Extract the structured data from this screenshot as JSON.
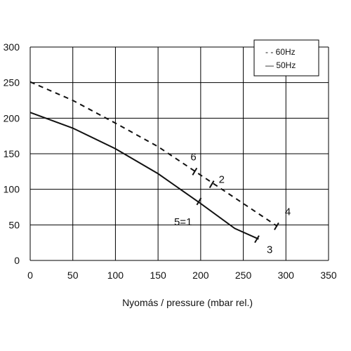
{
  "chart_data": {
    "type": "line",
    "title": "",
    "xlabel": "Nyomás  / pressure (mbar rel.)",
    "ylabel": "",
    "xlim": [
      0,
      350
    ],
    "ylim": [
      0,
      300
    ],
    "x_ticks": [
      0,
      50,
      100,
      150,
      200,
      250,
      300,
      350
    ],
    "y_ticks": [
      0,
      50,
      100,
      150,
      200,
      250,
      300
    ],
    "grid": true,
    "legend_position": "top-right",
    "series": [
      {
        "name": "60Hz",
        "legend_label": "- - 60Hz",
        "style": "dashed",
        "x": [
          0,
          50,
          100,
          150,
          200,
          250,
          290
        ],
        "y": [
          251,
          225,
          193,
          160,
          120,
          80,
          48
        ]
      },
      {
        "name": "50Hz",
        "legend_label": "—  50Hz",
        "style": "solid",
        "x": [
          0,
          50,
          100,
          150,
          200,
          240,
          268
        ],
        "y": [
          208,
          186,
          157,
          122,
          80,
          45,
          30
        ]
      }
    ],
    "markers": [
      {
        "label": "6",
        "x": 193,
        "y": 125
      },
      {
        "label": "2",
        "x": 213,
        "y": 107
      },
      {
        "label": "5=1",
        "x": 198,
        "y": 83
      },
      {
        "label": "4",
        "x": 289,
        "y": 48
      },
      {
        "label": "3",
        "x": 266,
        "y": 30
      }
    ]
  }
}
